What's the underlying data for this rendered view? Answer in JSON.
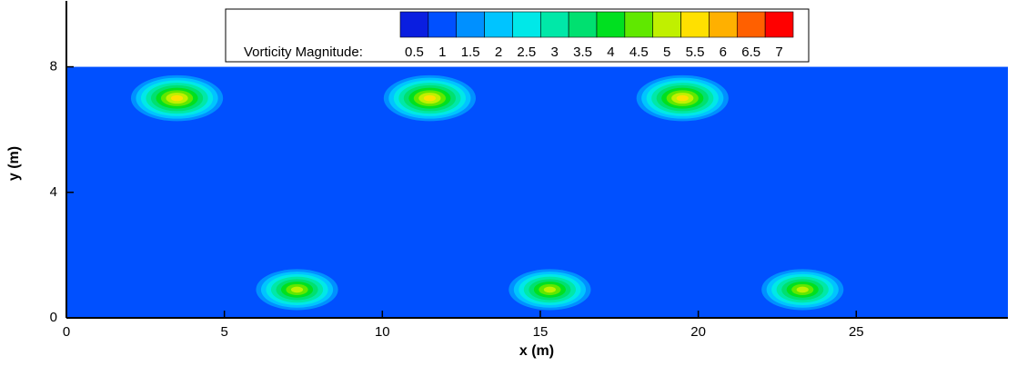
{
  "chart_data": {
    "type": "contour",
    "x_label": "x (m)",
    "y_label": "y (m)",
    "xlim": [
      0,
      29.8
    ],
    "ylim": [
      0,
      10.1
    ],
    "xticks": [
      0,
      5,
      10,
      15,
      20,
      25
    ],
    "yticks": [
      0,
      4,
      8
    ],
    "field_ylim": [
      0,
      8
    ],
    "background_level": 1,
    "colorbar": {
      "title": "Vorticity Magnitude:",
      "levels": [
        0.5,
        1,
        1.5,
        2,
        2.5,
        3,
        3.5,
        4,
        4.5,
        5,
        5.5,
        6,
        6.5,
        7
      ],
      "colors": [
        "#0a1ee0",
        "#0050ff",
        "#0090ff",
        "#00c4ff",
        "#00e8e8",
        "#00e8a8",
        "#00e070",
        "#00e020",
        "#60e800",
        "#c0f000",
        "#ffe000",
        "#ffb000",
        "#ff6000",
        "#ff0000"
      ]
    },
    "points": {
      "x": [
        3.5,
        11.5,
        19.5,
        7.3,
        15.3,
        23.3
      ],
      "y": [
        7.0,
        7.0,
        7.0,
        0.9,
        0.9,
        0.9
      ],
      "values": [
        5.5,
        5.5,
        5.5,
        5,
        5,
        5
      ]
    }
  }
}
